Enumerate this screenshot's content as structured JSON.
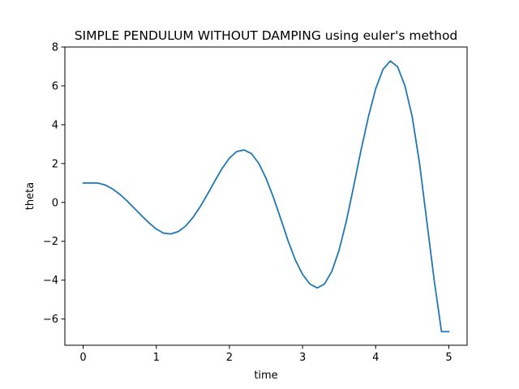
{
  "chart_data": {
    "type": "line",
    "title": "SIMPLE PENDULUM WITHOUT DAMPING using euler's method",
    "xlabel": "time",
    "ylabel": "theta",
    "xlim": [
      -0.25,
      5.25
    ],
    "ylim": [
      -7.35,
      8.0
    ],
    "xticks": [
      0,
      1,
      2,
      3,
      4,
      5
    ],
    "yticks": [
      -6,
      -4,
      -2,
      0,
      2,
      4,
      6,
      8
    ],
    "xtick_labels": [
      "0",
      "1",
      "2",
      "3",
      "4",
      "5"
    ],
    "ytick_labels": [
      "−6",
      "−4",
      "−2",
      "0",
      "2",
      "4",
      "6",
      "8"
    ],
    "grid": false,
    "legend": "none",
    "series": [
      {
        "color": "#1f77b4",
        "x": [
          0.0,
          0.1,
          0.2,
          0.3,
          0.4,
          0.5,
          0.6,
          0.7,
          0.8,
          0.9,
          1.0,
          1.1,
          1.2,
          1.3,
          1.4,
          1.5,
          1.6,
          1.7,
          1.8,
          1.9,
          2.0,
          2.1,
          2.2,
          2.3,
          2.4,
          2.5,
          2.6,
          2.7,
          2.8,
          2.9,
          3.0,
          3.1,
          3.2,
          3.3,
          3.4,
          3.5,
          3.6,
          3.7,
          3.8,
          3.9,
          4.0,
          4.1,
          4.2,
          4.3,
          4.4,
          4.5,
          4.6,
          4.7,
          4.8,
          4.9,
          5.0
        ],
        "y": [
          1.0,
          1.0,
          1.0,
          0.9,
          0.7,
          0.42,
          0.08,
          -0.3,
          -0.68,
          -1.05,
          -1.37,
          -1.58,
          -1.62,
          -1.5,
          -1.22,
          -0.78,
          -0.22,
          0.42,
          1.1,
          1.75,
          2.28,
          2.62,
          2.7,
          2.52,
          2.02,
          1.25,
          0.28,
          -0.82,
          -1.95,
          -2.95,
          -3.7,
          -4.2,
          -4.4,
          -4.2,
          -3.55,
          -2.45,
          -0.95,
          0.85,
          2.7,
          4.4,
          5.85,
          6.85,
          7.28,
          6.98,
          6.0,
          4.4,
          2.0,
          -1.0,
          -4.0,
          -6.65,
          -6.65
        ]
      }
    ]
  }
}
